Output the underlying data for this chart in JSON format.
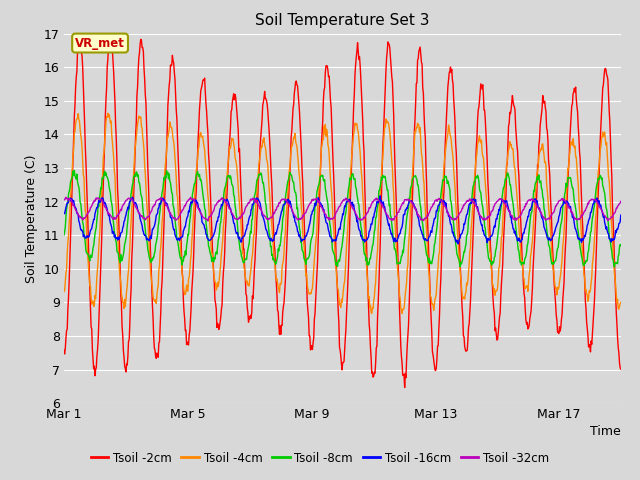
{
  "title": "Soil Temperature Set 3",
  "xlabel": "Time",
  "ylabel": "Soil Temperature (C)",
  "ylim": [
    6.0,
    17.0
  ],
  "yticks": [
    6.0,
    7.0,
    8.0,
    9.0,
    10.0,
    11.0,
    12.0,
    13.0,
    14.0,
    15.0,
    16.0,
    17.0
  ],
  "xtick_labels": [
    "Mar 1",
    "Mar 5",
    "Mar 9",
    "Mar 13",
    "Mar 17"
  ],
  "xtick_positions": [
    0,
    4,
    8,
    12,
    16
  ],
  "xlim": [
    0,
    18
  ],
  "annotation_text": "VR_met",
  "annotation_bg": "#ffffcc",
  "annotation_border": "#999900",
  "annotation_text_color": "#cc0000",
  "series_colors": [
    "#ff0000",
    "#ff8800",
    "#00cc00",
    "#0000ff",
    "#bb00bb"
  ],
  "series_labels": [
    "Tsoil -2cm",
    "Tsoil -4cm",
    "Tsoil -8cm",
    "Tsoil -16cm",
    "Tsoil -32cm"
  ],
  "fig_bg": "#d8d8d8",
  "plot_bg": "#d8d8d8",
  "grid_color": "#ffffff",
  "n_days": 18,
  "n_per_day": 48,
  "base_mean": 11.5,
  "amp_2cm": 4.2,
  "amp_4cm": 2.5,
  "amp_8cm": 1.3,
  "amp_16cm": 0.6,
  "amp_32cm": 0.3,
  "phase_2cm": -1.5707963,
  "phase_4cm": -1.2,
  "phase_8cm": -0.5,
  "phase_16cm": 0.2,
  "phase_32cm": 0.9
}
